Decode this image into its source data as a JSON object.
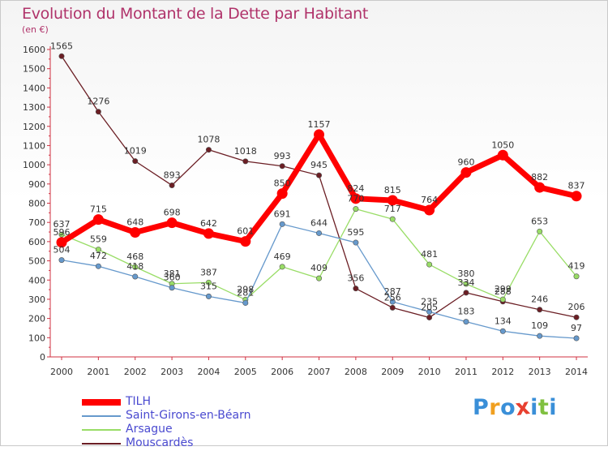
{
  "chart_data": {
    "type": "line",
    "title": "Evolution du Montant de la Dette par Habitant",
    "subtitle": "(en €)",
    "ylim": [
      0,
      1600
    ],
    "yticks": [
      0,
      100,
      200,
      300,
      400,
      500,
      600,
      700,
      800,
      900,
      1000,
      1100,
      1200,
      1300,
      1400,
      1500,
      1600
    ],
    "x": [
      "2000",
      "2001",
      "2002",
      "2003",
      "2004",
      "2005",
      "2006",
      "2007",
      "2008",
      "2009",
      "2010",
      "2011",
      "2012",
      "2013",
      "2014"
    ],
    "grid": false,
    "legend": "bottom-left",
    "series": [
      {
        "name": "Mouscardès",
        "color": "#6b1e24",
        "values": [
          1565,
          1276,
          1019,
          893,
          1078,
          1018,
          993,
          945,
          356,
          256,
          205,
          334,
          288,
          246,
          206
        ]
      },
      {
        "name": "Arsague",
        "color": "#99dd66",
        "values": [
          637,
          559,
          468,
          381,
          387,
          298,
          469,
          409,
          770,
          717,
          481,
          380,
          299,
          653,
          419
        ]
      },
      {
        "name": "Saint-Girons-en-Béarn",
        "color": "#6699cc",
        "values": [
          504,
          472,
          418,
          360,
          315,
          281,
          691,
          644,
          595,
          287,
          235,
          183,
          134,
          109,
          97
        ]
      },
      {
        "name": "TILH",
        "color": "#ff0000",
        "values": [
          596,
          715,
          648,
          698,
          642,
          601,
          850,
          1157,
          824,
          815,
          764,
          960,
          1050,
          882,
          837
        ]
      }
    ]
  },
  "legend_items": [
    {
      "name": "TILH",
      "color": "#ff0000"
    },
    {
      "name": "Saint-Girons-en-Béarn",
      "color": "#6699cc"
    },
    {
      "name": "Arsague",
      "color": "#99dd66"
    },
    {
      "name": "Mouscardès",
      "color": "#6b1e24"
    }
  ],
  "logo": {
    "letters": [
      "P",
      "r",
      "o",
      "x",
      "i",
      "t",
      "i"
    ],
    "colors": [
      "#3a8fd8",
      "#f0a020",
      "#3a8fd8",
      "#e84030",
      "#3a8fd8",
      "#80c040",
      "#3a8fd8"
    ]
  }
}
